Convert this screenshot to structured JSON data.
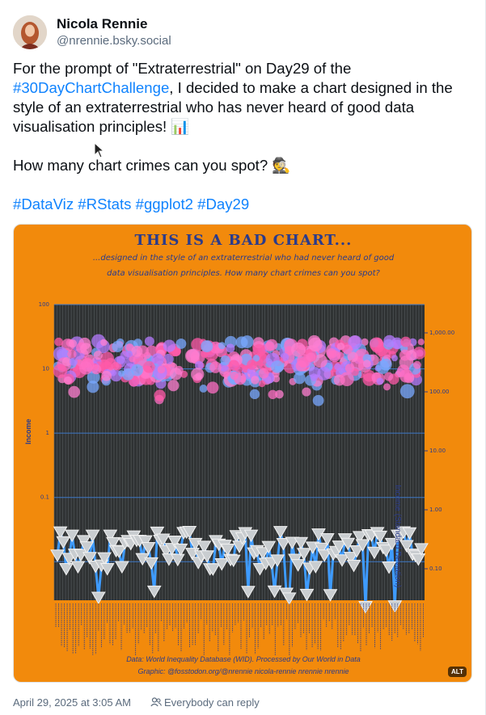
{
  "author": {
    "name": "Nicola Rennie",
    "handle": "@nrennie.bsky.social"
  },
  "post": {
    "line1_a": "For the prompt of \"Extraterrestrial\" on Day29 of the",
    "line1_link": "#30DayChartChallenge",
    "line1_b": ", I decided  to make a chart designed in the style of an extraterrestrial who has never heard of good data visualisation principles! 📊",
    "line2": "How many chart crimes can you spot? 🕵",
    "hashtags": [
      "#DataViz",
      "#RStats",
      "#ggplot2",
      "#Day29"
    ]
  },
  "image": {
    "alt_badge": "ALT",
    "title": "THIS IS A BAD CHART...",
    "subtitle": "...designed in the style of an extraterrestrial who had never heard of good data visualisation principles. How many chart crimes can you spot?",
    "y_left_label": "Income",
    "y_right_label": "Income (Standard Deviation)",
    "caption_1": "Data: World Inequality Database (WID). Processed by Our World in Data",
    "caption_2": "Graphic: @fosstodon.org/@nrennie  nicola-rennie  nrennie  nrennie",
    "colors": {
      "background": "#f28a0c",
      "panel": "#2f3233",
      "text": "#2a3b8c",
      "points": "#ff6fc4",
      "line": "#3e9bff"
    }
  },
  "chart_data": {
    "type": "scatter",
    "title": "THIS IS A BAD CHART...",
    "ylabel": "Income",
    "y2label": "Income (Standard Deviation)",
    "left_ticks": [
      "100",
      "10",
      "1",
      "0.1"
    ],
    "right_ticks": [
      "1,000.00",
      "100.00",
      "10.00",
      "1.00",
      "0.10"
    ],
    "log_scale": true,
    "series": [
      {
        "marker": "circles",
        "values_approx_range": [
          10,
          30
        ]
      },
      {
        "marker": "triangles",
        "values_approx_range": [
          0.005,
          0.2
        ]
      }
    ]
  },
  "footer": {
    "timestamp": "April 29, 2025 at 3:05 AM",
    "reply_setting": "Everybody can reply"
  }
}
